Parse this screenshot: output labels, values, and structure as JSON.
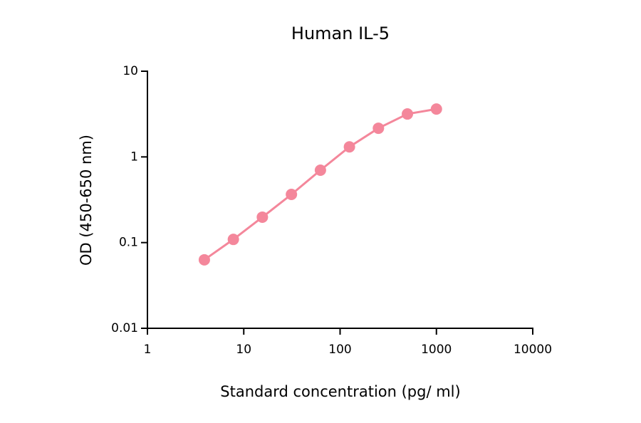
{
  "chart_data": {
    "type": "line",
    "title": "Human IL-5",
    "x_label": "Standard concentration (pg/ ml)",
    "y_label": "OD (450-650 nm)",
    "x": [
      3.9,
      7.8,
      15.6,
      31.25,
      62.5,
      125,
      250,
      500,
      1000
    ],
    "series": [
      {
        "color": "#f4879b",
        "values": [
          0.063,
          0.109,
          0.198,
          0.365,
          0.7,
          1.31,
          2.16,
          3.17,
          3.62
        ]
      }
    ],
    "x_scale": "log",
    "y_scale": "log",
    "xlim": [
      1,
      10000
    ],
    "xticks": [
      1,
      10,
      100,
      1000,
      10000
    ],
    "ylim": [
      0.01,
      10
    ],
    "yticks": [
      0.01,
      0.1,
      1,
      10
    ],
    "markers": true
  }
}
